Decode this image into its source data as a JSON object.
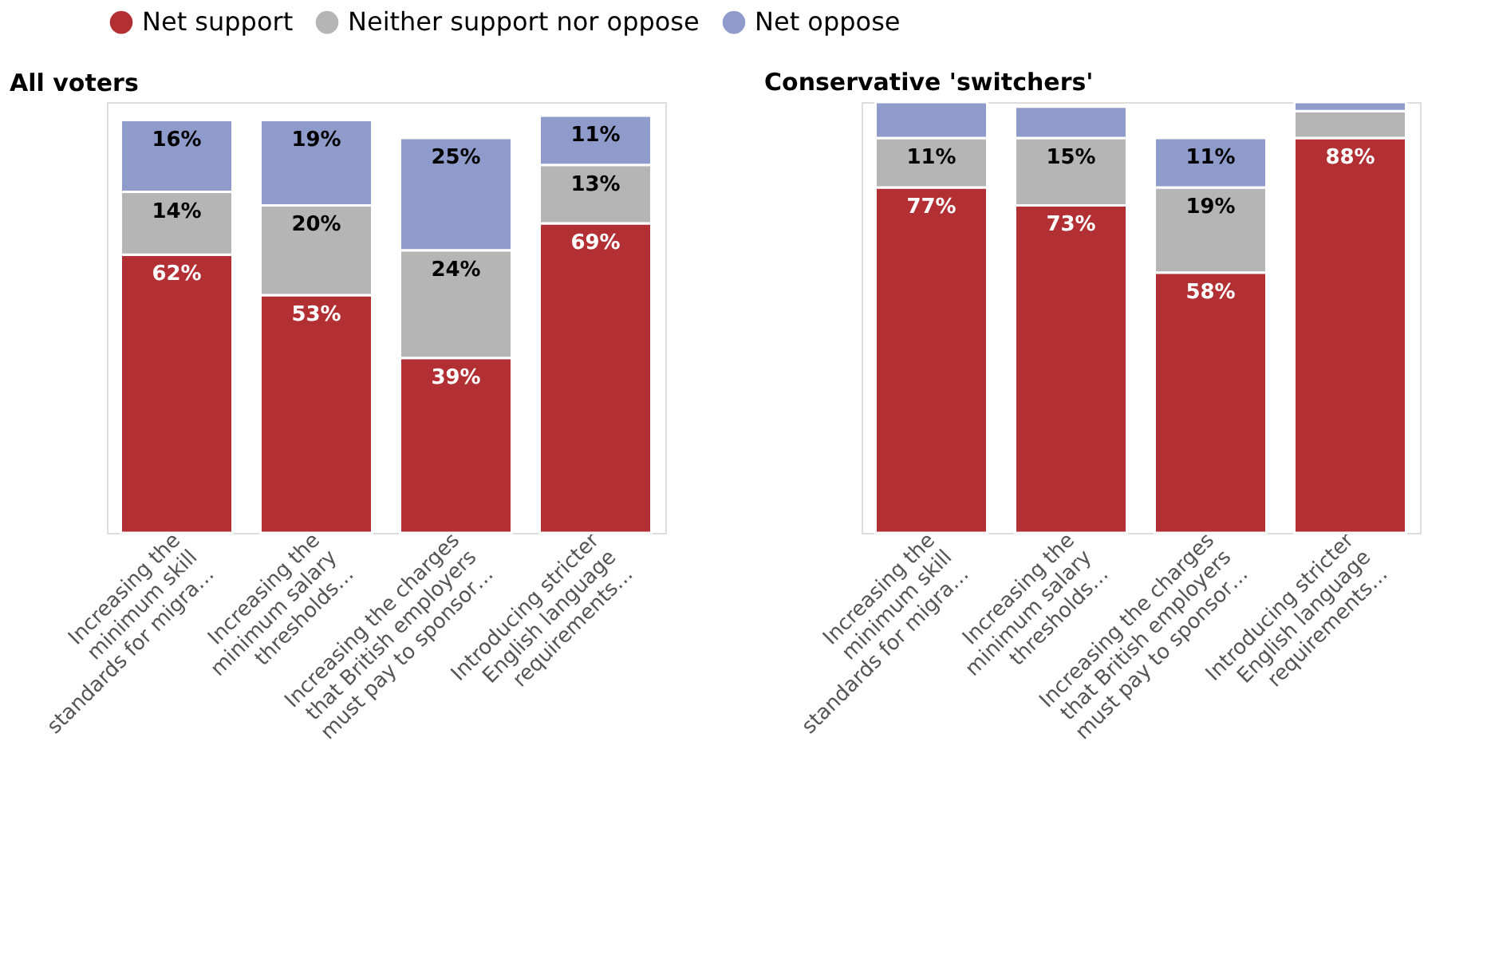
{
  "chart_data": [
    {
      "type": "bar",
      "title": "All voters",
      "stacked": true,
      "legend": "top",
      "categories": [
        "Increasing the\nminimum skill\nstandards for migra…",
        "Increasing the\nminimum salary\nthresholds…",
        "Increasing the charges\nthat British employers\nmust pay to sponsor…",
        "Introducing stricter\nEnglish language\nrequirements…"
      ],
      "series": [
        {
          "name": "Net support",
          "color": "#b22f33",
          "values": [
            62,
            53,
            39,
            69
          ],
          "value_labels": [
            "62%",
            "53%",
            "39%",
            "69%"
          ]
        },
        {
          "name": "Neither support nor oppose",
          "color": "#b5b5b5",
          "values": [
            14,
            20,
            24,
            13
          ],
          "value_labels": [
            "14%",
            "20%",
            "24%",
            "13%"
          ]
        },
        {
          "name": "Net oppose",
          "color": "#8f9bcb",
          "values": [
            16,
            19,
            25,
            11
          ],
          "value_labels": [
            "16%",
            "19%",
            "25%",
            "11%"
          ]
        }
      ]
    },
    {
      "type": "bar",
      "title": "Conservative 'switchers'",
      "stacked": true,
      "legend": "top",
      "categories": [
        "Increasing the\nminimum skill\nstandards for migra…",
        "Increasing the\nminimum salary\nthresholds…",
        "Increasing the charges\nthat British employers\nmust pay to sponsor…",
        "Introducing stricter\nEnglish language\nrequirements…"
      ],
      "series": [
        {
          "name": "Net support",
          "color": "#b22f33",
          "values": [
            77,
            73,
            58,
            88
          ],
          "value_labels": [
            "77%",
            "73%",
            "58%",
            "88%"
          ]
        },
        {
          "name": "Neither support nor oppose",
          "color": "#b5b5b5",
          "values": [
            11,
            15,
            19,
            6
          ],
          "value_labels": [
            "11%",
            "15%",
            "19%",
            null
          ]
        },
        {
          "name": "Net oppose",
          "color": "#8f9bcb",
          "values": [
            8,
            7,
            11,
            2
          ],
          "value_labels": [
            null,
            null,
            "11%",
            null
          ]
        }
      ]
    }
  ]
}
